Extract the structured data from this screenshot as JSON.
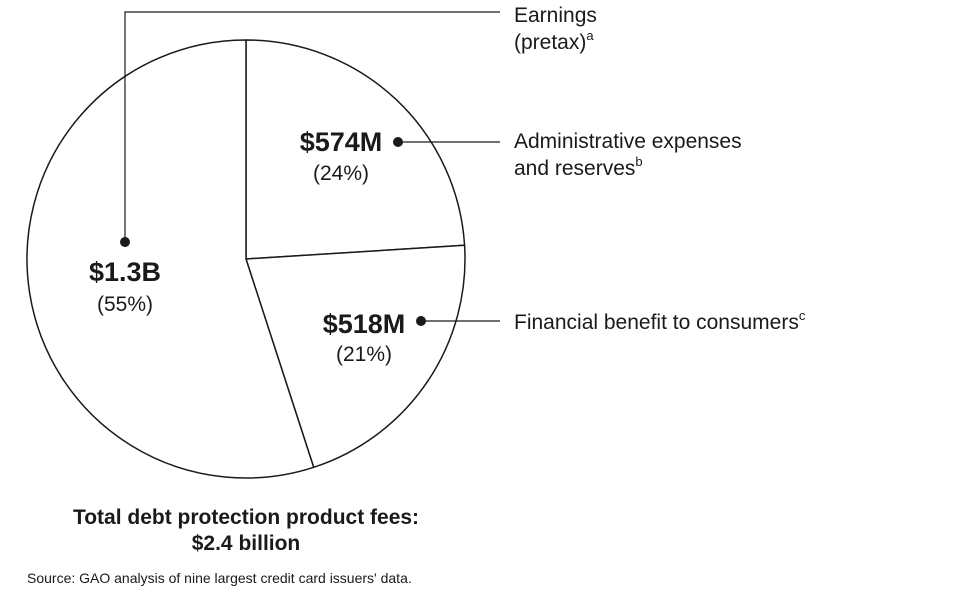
{
  "chart_data": {
    "type": "pie",
    "slices": [
      {
        "id": "earnings",
        "amount_label": "$1.3B",
        "percent_label": "(55%)",
        "percent": 55,
        "legend_lines": [
          "Earnings",
          "(pretax)"
        ],
        "footnote": "a"
      },
      {
        "id": "admin",
        "amount_label": "$574M",
        "percent_label": "(24%)",
        "percent": 24,
        "legend_lines": [
          "Administrative expenses",
          "and reserves"
        ],
        "footnote": "b"
      },
      {
        "id": "benefit",
        "amount_label": "$518M",
        "percent_label": "(21%)",
        "percent": 21,
        "legend_lines": [
          "Financial benefit to consumers"
        ],
        "footnote": "c"
      }
    ],
    "total_lines": [
      "Total debt protection product fees:",
      "$2.4 billion"
    ],
    "source": "Source: GAO analysis of nine largest credit card issuers' data.",
    "colors": {
      "stroke": "#1a1a1a",
      "fill": "#ffffff"
    }
  }
}
